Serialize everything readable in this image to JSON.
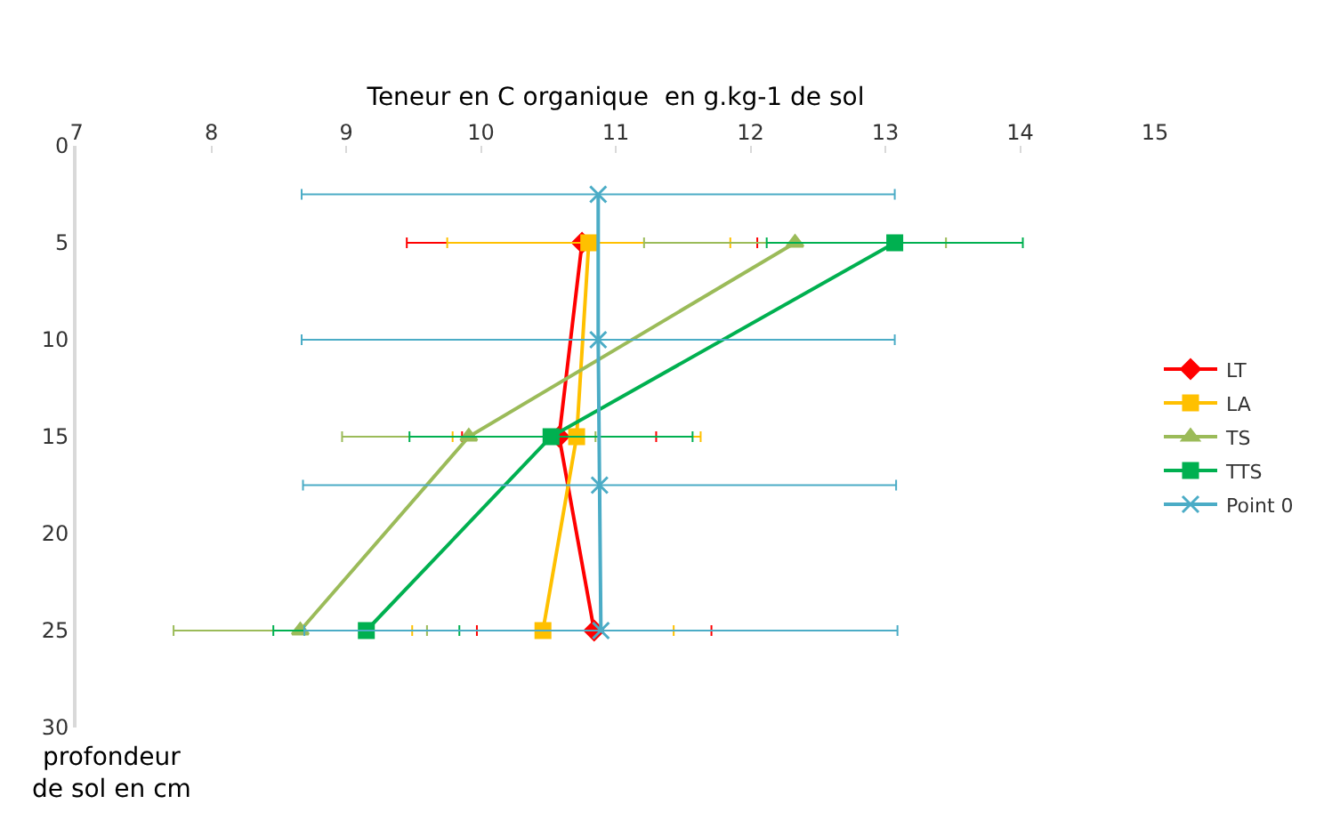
{
  "chart_data": {
    "type": "line",
    "xlabel": "Teneur en C organique  en g.kg-1 de sol",
    "ylabel": "profondeur de sol en cm",
    "xlim": [
      7,
      15
    ],
    "xticks": [
      7,
      8,
      9,
      10,
      11,
      12,
      13,
      14,
      15
    ],
    "ylim": [
      30,
      0
    ],
    "yticks": [
      0,
      5,
      10,
      15,
      20,
      25,
      30
    ],
    "grid": false,
    "legend": "right",
    "line_style": "solid",
    "series": [
      {
        "name": "LT",
        "color": "#ff0000",
        "marker": "diamond",
        "x": [
          10.75,
          10.58,
          10.84
        ],
        "values": [
          5,
          15,
          25
        ],
        "xerrors": [
          1.3,
          0.72,
          0.87
        ]
      },
      {
        "name": "LA",
        "color": "#ffc000",
        "marker": "square",
        "x": [
          10.8,
          10.71,
          10.46
        ],
        "values": [
          5,
          15,
          25
        ],
        "xerrors": [
          1.05,
          0.92,
          0.97
        ]
      },
      {
        "name": "TS",
        "color": "#9bbb59",
        "marker": "triangle",
        "x": [
          12.33,
          9.91,
          8.66
        ],
        "values": [
          5,
          15,
          25
        ],
        "xerrors": [
          1.12,
          0.94,
          0.94
        ]
      },
      {
        "name": "TTS",
        "color": "#00b050",
        "marker": "square",
        "x": [
          13.07,
          10.52,
          9.15
        ],
        "values": [
          5,
          15,
          25
        ],
        "xerrors": [
          0.95,
          1.05,
          0.69
        ]
      },
      {
        "name": "Point 0",
        "color": "#4bacc6",
        "marker": "cross",
        "x": [
          10.87,
          10.87,
          10.88,
          10.89
        ],
        "values": [
          2.5,
          10,
          17.5,
          25
        ],
        "xerrors": [
          2.2,
          2.2,
          2.2,
          2.2
        ]
      }
    ]
  }
}
